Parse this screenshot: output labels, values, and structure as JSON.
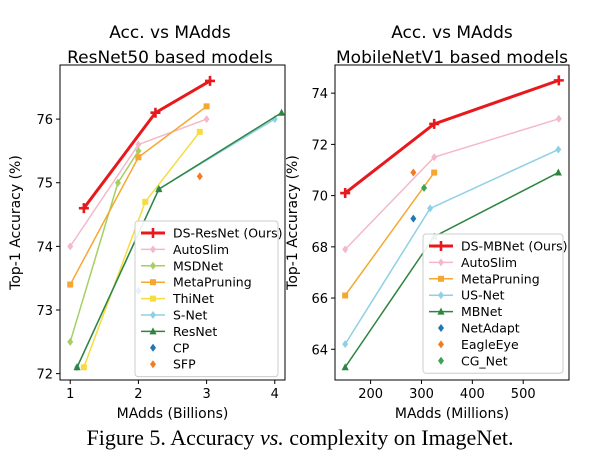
{
  "caption": {
    "prefix": "Figure 5. Accuracy ",
    "vs": "vs.",
    "suffix": " complexity on ImageNet."
  },
  "chart_data": [
    {
      "type": "line",
      "title": "Acc. vs MAdds\nResNet50 based models",
      "xlabel": "MAdds (Billions)",
      "ylabel": "Top-1 Accuracy (%)",
      "xlim": [
        0.85,
        4.15
      ],
      "ylim": [
        71.9,
        76.85
      ],
      "xticks": [
        1,
        2,
        3,
        4
      ],
      "yticks": [
        72,
        73,
        74,
        75,
        76
      ],
      "legend_position": "lower-right",
      "series": [
        {
          "name": "DS-ResNet (Ours)",
          "color": "#e8191c",
          "marker": "plus",
          "linewidth": 3,
          "points": [
            [
              1.2,
              74.6
            ],
            [
              2.25,
              76.1
            ],
            [
              3.05,
              76.6
            ]
          ]
        },
        {
          "name": "AutoSlim",
          "color": "#f4b9c9",
          "marker": "diamond",
          "linewidth": 1.5,
          "points": [
            [
              1.0,
              74.0
            ],
            [
              2.0,
              75.6
            ],
            [
              3.0,
              76.0
            ]
          ]
        },
        {
          "name": "MSDNet",
          "color": "#a5cf62",
          "marker": "diamond",
          "linewidth": 1.5,
          "points": [
            [
              1.0,
              72.5
            ],
            [
              1.7,
              75.0
            ],
            [
              2.0,
              75.5
            ]
          ]
        },
        {
          "name": "MetaPruning",
          "color": "#f5a732",
          "marker": "square",
          "linewidth": 1.5,
          "points": [
            [
              1.0,
              73.4
            ],
            [
              2.0,
              75.4
            ],
            [
              3.0,
              76.2
            ]
          ]
        },
        {
          "name": "ThiNet",
          "color": "#f7dc3e",
          "marker": "square",
          "linewidth": 1.5,
          "points": [
            [
              1.2,
              72.1
            ],
            [
              2.1,
              74.7
            ],
            [
              2.9,
              75.8
            ]
          ]
        },
        {
          "name": "S-Net",
          "color": "#8fd0e5",
          "marker": "diamond",
          "linewidth": 1.5,
          "points": [
            [
              1.1,
              72.1
            ],
            [
              2.3,
              74.9
            ],
            [
              4.0,
              76.0
            ]
          ]
        },
        {
          "name": "ResNet",
          "color": "#2e8540",
          "marker": "triangle",
          "linewidth": 1.5,
          "points": [
            [
              1.1,
              72.1
            ],
            [
              2.3,
              74.9
            ],
            [
              4.1,
              76.1
            ]
          ]
        },
        {
          "name": "CP",
          "color": "#2077b4",
          "marker": "diamond",
          "linewidth": 0,
          "points": [
            [
              2.0,
              73.3
            ]
          ]
        },
        {
          "name": "SFP",
          "color": "#f07c25",
          "marker": "diamond",
          "linewidth": 0,
          "points": [
            [
              2.9,
              75.1
            ]
          ]
        }
      ]
    },
    {
      "type": "line",
      "title": "Acc. vs MAdds\nMobileNetV1 based models",
      "xlabel": "MAdds (Millions)",
      "ylabel": "Top-1 Accuracy (%)",
      "xlim": [
        130,
        590
      ],
      "ylim": [
        62.8,
        75.1
      ],
      "xticks": [
        200,
        300,
        400,
        500
      ],
      "yticks": [
        64,
        66,
        68,
        70,
        72,
        74
      ],
      "legend_position": "lower-right",
      "series": [
        {
          "name": "DS-MBNet (Ours)",
          "color": "#e8191c",
          "marker": "plus",
          "linewidth": 3,
          "points": [
            [
              150,
              70.1
            ],
            [
              325,
              72.8
            ],
            [
              570,
              74.5
            ]
          ]
        },
        {
          "name": "AutoSlim",
          "color": "#f4b9c9",
          "marker": "diamond",
          "linewidth": 1.5,
          "points": [
            [
              150,
              67.9
            ],
            [
              325,
              71.5
            ],
            [
              570,
              73.0
            ]
          ]
        },
        {
          "name": "MetaPruning",
          "color": "#f5a732",
          "marker": "square",
          "linewidth": 1.5,
          "points": [
            [
              150,
              66.1
            ],
            [
              325,
              70.9
            ]
          ]
        },
        {
          "name": "US-Net",
          "color": "#8fd0e5",
          "marker": "diamond",
          "linewidth": 1.5,
          "points": [
            [
              150,
              64.2
            ],
            [
              317,
              69.5
            ],
            [
              569,
              71.8
            ]
          ]
        },
        {
          "name": "MBNet",
          "color": "#2e8540",
          "marker": "triangle",
          "linewidth": 1.5,
          "points": [
            [
              150,
              63.3
            ],
            [
              325,
              68.4
            ],
            [
              569,
              70.9
            ]
          ]
        },
        {
          "name": "NetAdapt",
          "color": "#2077b4",
          "marker": "diamond",
          "linewidth": 0,
          "points": [
            [
              284,
              69.1
            ]
          ]
        },
        {
          "name": "EagleEye",
          "color": "#f07c25",
          "marker": "diamond",
          "linewidth": 0,
          "points": [
            [
              284,
              70.9
            ]
          ]
        },
        {
          "name": "CG_Net",
          "color": "#3fa34d",
          "marker": "diamond",
          "linewidth": 0,
          "points": [
            [
              305,
              70.3
            ]
          ]
        }
      ]
    }
  ]
}
